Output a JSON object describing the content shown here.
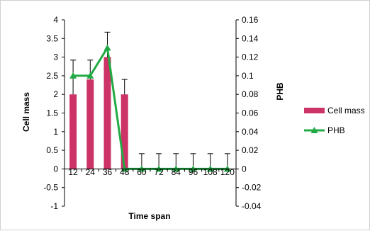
{
  "chart_data": {
    "type": "bar",
    "xlabel": "Time span",
    "ylabel": "Cell mass",
    "y2label": "PHB",
    "categories": [
      "12",
      "24",
      "36",
      "48",
      "60",
      "72",
      "84",
      "96",
      "108",
      "120"
    ],
    "ylim": [
      -1,
      4
    ],
    "yticks": [
      "-1",
      "-0.5",
      "0",
      "0.5",
      "1",
      "1.5",
      "2",
      "2.5",
      "3",
      "3.5",
      "4"
    ],
    "y2lim": [
      -0.04,
      0.16
    ],
    "y2ticks": [
      "-0.04",
      "-0.02",
      "0",
      "0.02",
      "0.04",
      "0.06",
      "0.08",
      "0.1",
      "0.12",
      "0.14",
      "0.16"
    ],
    "legend_position": "right",
    "series": [
      {
        "name": "Cell mass",
        "kind": "bar",
        "axis": "left",
        "color": "#cc3366",
        "values": [
          2.0,
          2.4,
          3.0,
          2.0,
          0,
          0,
          0,
          0,
          0,
          0
        ],
        "error_upper": [
          0.92,
          0.52,
          0.67,
          0.4,
          0.41,
          0.41,
          0.41,
          0.41,
          0.41,
          0.41
        ]
      },
      {
        "name": "PHB",
        "kind": "line",
        "axis": "right",
        "color": "#22aa44",
        "marker": "triangle",
        "values": [
          0.1,
          0.1,
          0.13,
          0,
          0,
          0,
          0,
          0,
          0,
          0
        ]
      }
    ]
  }
}
